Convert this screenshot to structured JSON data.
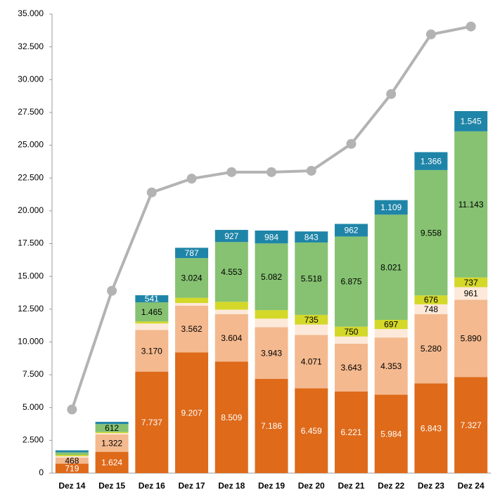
{
  "chart_data": {
    "type": "bar",
    "stacked": true,
    "categories": [
      "Dez 14",
      "Dez 15",
      "Dez 16",
      "Dez 17",
      "Dez 18",
      "Dez 19",
      "Dez 20",
      "Dez 21",
      "Dez 22",
      "Dez 23",
      "Dez 24"
    ],
    "ylim": [
      0,
      35000
    ],
    "yticks": [
      0,
      {
        "value": 2500,
        "label": "2.500"
      },
      {
        "value": 5000,
        "label": "5.000"
      },
      {
        "value": 7500,
        "label": "7.500"
      },
      {
        "value": 10000,
        "label": "10.000"
      },
      {
        "value": 12500,
        "label": "12.500"
      },
      {
        "value": 15000,
        "label": "15.000"
      },
      {
        "value": 17500,
        "label": "17.500"
      },
      {
        "value": 20000,
        "label": "20.000"
      },
      {
        "value": 22500,
        "label": "22.500"
      },
      {
        "value": 25000,
        "label": "25.000"
      },
      {
        "value": 27500,
        "label": "27.500"
      },
      {
        "value": 30000,
        "label": "30.000"
      },
      {
        "value": 32500,
        "label": "32.500"
      },
      {
        "value": 35000,
        "label": "35.000"
      }
    ],
    "series": [
      {
        "color": "#de6a1a",
        "values": [
          719,
          1624,
          7737,
          9207,
          8509,
          7186,
          6459,
          6221,
          5984,
          6843,
          7327
        ],
        "value_labels": [
          "719",
          "1.624",
          "7.737",
          "9.207",
          "8.509",
          "7.186",
          "6.459",
          "6.221",
          "5.984",
          "6.843",
          "7.327"
        ]
      },
      {
        "color": "#f4b98f",
        "values": [
          468,
          1322,
          3170,
          3562,
          3604,
          3943,
          4071,
          3643,
          4353,
          5280,
          5890
        ],
        "value_labels": [
          "468",
          "1.322",
          "3.170",
          "3.562",
          "3.604",
          "3.943",
          "4.071",
          "3.643",
          "4.353",
          "5.280",
          "5.890"
        ]
      },
      {
        "color": "#fde9d9",
        "values": [
          100,
          100,
          500,
          200,
          350,
          650,
          800,
          550,
          650,
          748,
          961
        ],
        "value_labels": [
          null,
          null,
          null,
          null,
          null,
          null,
          null,
          null,
          null,
          "748",
          "961"
        ]
      },
      {
        "color": "#d4d829",
        "values": [
          100,
          80,
          150,
          400,
          600,
          650,
          735,
          750,
          697,
          676,
          737
        ],
        "value_labels": [
          null,
          null,
          null,
          null,
          null,
          null,
          "735",
          "750",
          "697",
          "676",
          "737"
        ]
      },
      {
        "color": "#86c272",
        "values": [
          200,
          612,
          1465,
          3024,
          4553,
          5082,
          5518,
          6875,
          8021,
          9558,
          11143
        ],
        "value_labels": [
          null,
          "612",
          "1.465",
          "3.024",
          "4.553",
          "5.082",
          "5.518",
          "6.875",
          "8.021",
          "9.558",
          "11.143"
        ]
      },
      {
        "color": "#1f85a8",
        "values": [
          150,
          170,
          541,
          787,
          927,
          984,
          843,
          962,
          1109,
          1366,
          1545
        ],
        "value_labels": [
          null,
          null,
          "541",
          "787",
          "927",
          "984",
          "843",
          "962",
          "1.109",
          "1.366",
          "1.545"
        ]
      },
      {
        "type": "line",
        "color": "#b3b3b3",
        "values": [
          4850,
          13900,
          21400,
          22450,
          22950,
          22950,
          23050,
          25100,
          28900,
          33450,
          34050
        ]
      }
    ]
  }
}
